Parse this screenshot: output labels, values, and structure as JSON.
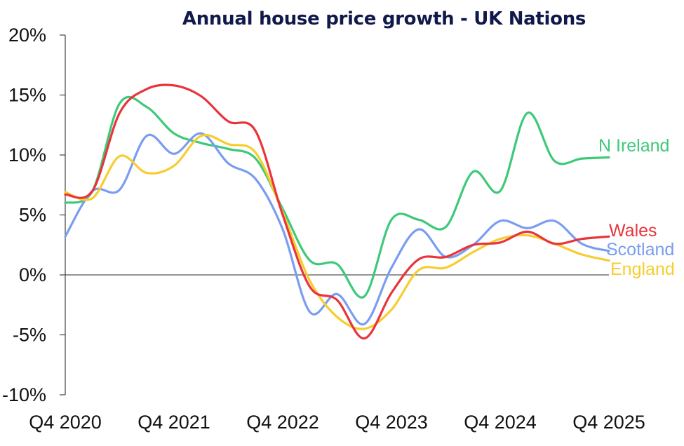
{
  "chart_data": {
    "type": "line",
    "title": "Annual house price growth - UK Nations",
    "xlabel": "",
    "ylabel": "",
    "ylim": [
      -10,
      20
    ],
    "x_range": [
      0,
      20
    ],
    "y_ticks": [
      "20%",
      "15%",
      "10%",
      "5%",
      "0%",
      "-5%",
      "-10%"
    ],
    "y_tick_values": [
      20,
      15,
      10,
      5,
      0,
      -5,
      -10
    ],
    "x_ticks": [
      "Q4 2020",
      "Q4 2021",
      "Q4 2022",
      "Q4 2023",
      "Q4 2024",
      "Q4 2025"
    ],
    "x_tick_values": [
      0,
      4,
      8,
      12,
      16,
      20
    ],
    "grid": false,
    "legend": "inline labels at series ends",
    "zero_line": true,
    "series": [
      {
        "name": "N Ireland",
        "color": "#3ec97a",
        "x": [
          0,
          1,
          2,
          3,
          4,
          5,
          6,
          7,
          8,
          9,
          10,
          11,
          12,
          13,
          14,
          15,
          16,
          17,
          18,
          19,
          20
        ],
        "values": [
          6.0,
          7.0,
          14.3,
          14.0,
          11.8,
          11.0,
          10.5,
          9.7,
          5.5,
          1.2,
          0.9,
          -1.8,
          4.6,
          4.6,
          4.0,
          8.6,
          7.0,
          13.5,
          9.5,
          9.7,
          9.8
        ]
      },
      {
        "name": "Wales",
        "color": "#e8343a",
        "x": [
          0,
          1,
          2,
          3,
          4,
          5,
          6,
          7,
          8,
          9,
          10,
          11,
          12,
          13,
          14,
          15,
          16,
          17,
          18,
          19,
          20
        ],
        "values": [
          6.7,
          7.0,
          13.5,
          15.5,
          15.8,
          14.9,
          12.8,
          12.0,
          5.0,
          -1.0,
          -2.1,
          -5.3,
          -1.5,
          1.3,
          1.5,
          2.5,
          2.7,
          3.6,
          2.6,
          3.0,
          3.2
        ]
      },
      {
        "name": "Scotland",
        "color": "#7a9df0",
        "x": [
          0,
          1,
          2,
          3,
          4,
          5,
          6,
          7,
          8,
          9,
          10,
          11,
          12,
          13,
          14,
          15,
          16,
          17,
          18,
          19,
          20
        ],
        "values": [
          3.2,
          7.0,
          7.1,
          11.6,
          10.1,
          11.8,
          9.3,
          8.0,
          3.8,
          -3.1,
          -1.6,
          -4.1,
          0.6,
          3.8,
          1.5,
          2.5,
          4.5,
          3.9,
          4.5,
          2.6,
          2.0
        ]
      },
      {
        "name": "England",
        "color": "#f7cd2e",
        "x": [
          0,
          1,
          2,
          3,
          4,
          5,
          6,
          7,
          8,
          9,
          10,
          11,
          12,
          13,
          14,
          15,
          16,
          17,
          18,
          19,
          20
        ],
        "values": [
          6.9,
          6.4,
          9.9,
          8.5,
          9.1,
          11.6,
          10.9,
          10.2,
          5.2,
          -0.5,
          -3.5,
          -4.5,
          -2.9,
          0.4,
          0.6,
          1.9,
          3.0,
          3.3,
          2.6,
          1.7,
          1.2
        ]
      }
    ]
  }
}
